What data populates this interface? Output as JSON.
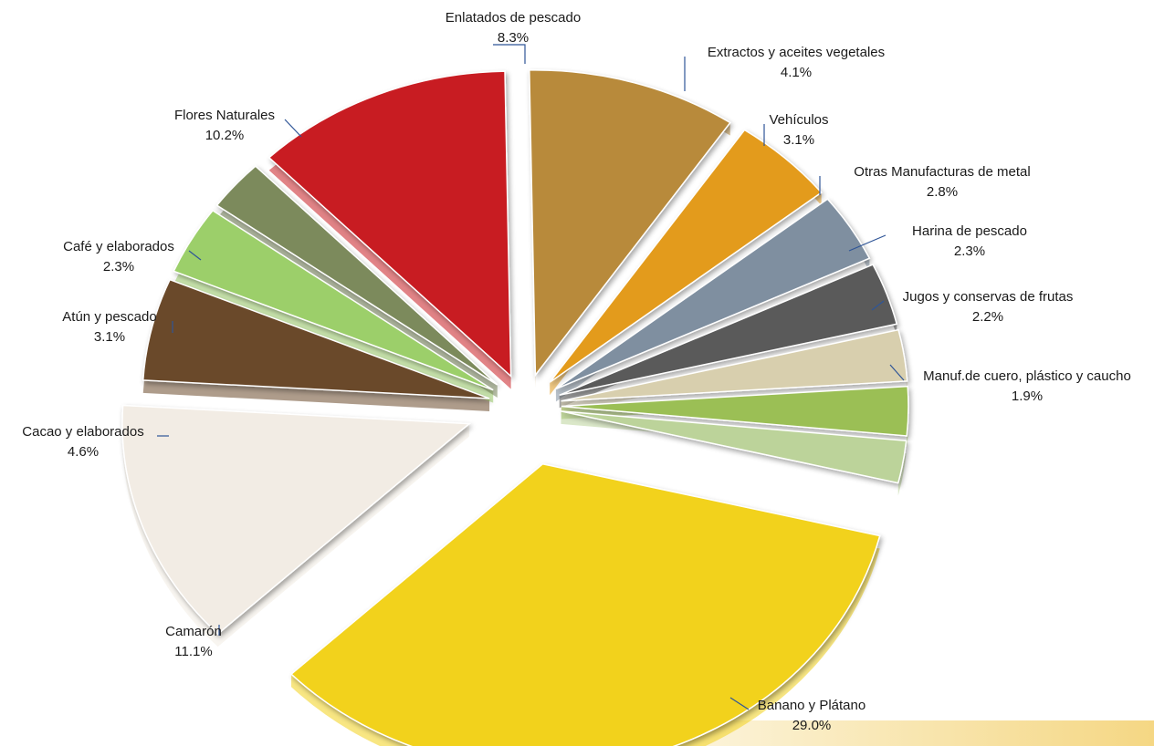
{
  "chart_data": {
    "type": "pie",
    "title": "",
    "series": [
      {
        "values": [
          8.3,
          4.1,
          3.1,
          2.8,
          2.3,
          2.2,
          1.9,
          29.0,
          11.1,
          4.6,
          3.1,
          2.3,
          10.2
        ]
      }
    ],
    "slices": [
      {
        "label": "Enlatados de pescado",
        "value": 8.3,
        "value_label": "8.3%",
        "color": "#b88a3a"
      },
      {
        "label": "Extractos y aceites vegetales",
        "value": 4.1,
        "value_label": "4.1%",
        "color": "#e39b1c"
      },
      {
        "label": "Vehículos",
        "value": 3.1,
        "value_label": "3.1%",
        "color": "#7f8fa0"
      },
      {
        "label": "Otras Manufacturas de metal",
        "value": 2.8,
        "value_label": "2.8%",
        "color": "#5a5a5a"
      },
      {
        "label": "Harina de pescado",
        "value": 2.3,
        "value_label": "2.3%",
        "color": "#d8cfae"
      },
      {
        "label": "Jugos y conservas de frutas",
        "value": 2.2,
        "value_label": "2.2%",
        "color": "#9bbf54"
      },
      {
        "label": "Manuf.de cuero, plástico y caucho",
        "value": 1.9,
        "value_label": "1.9%",
        "color": "#bcd39a"
      },
      {
        "label": "Banano y Plátano",
        "value": 29.0,
        "value_label": "29.0%",
        "color": "#f2d21b"
      },
      {
        "label": "Camarón",
        "value": 11.1,
        "value_label": "11.1%",
        "color": "#f2ece4"
      },
      {
        "label": "Cacao y elaborados",
        "value": 4.6,
        "value_label": "4.6%",
        "color": "#6b4a2b"
      },
      {
        "label": "Atún y pescado",
        "value": 3.1,
        "value_label": "3.1%",
        "color": "#9ccf6a"
      },
      {
        "label": "Café y elaborados",
        "value": 2.3,
        "value_label": "2.3%",
        "color": "#7c8a5c"
      },
      {
        "label": "Flores Naturales",
        "value": 10.2,
        "value_label": "10.2%",
        "color": "#c81e22"
      }
    ],
    "legend": "none",
    "labels": "outside, with leader lines"
  }
}
